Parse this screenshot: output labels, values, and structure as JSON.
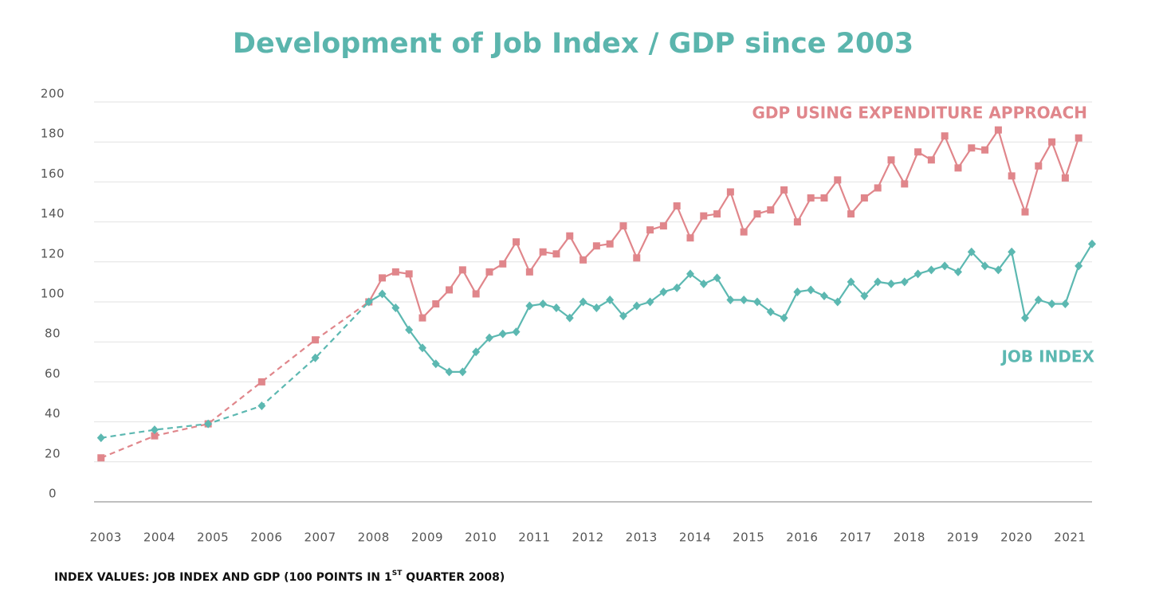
{
  "chart_data": {
    "type": "line",
    "title": "Development of Job Index / GDP since 2003",
    "xlim": [
      2002.87,
      2021.5
    ],
    "xticks": [
      2003,
      2004,
      2005,
      2006,
      2007,
      2008,
      2009,
      2010,
      2011,
      2012,
      2013,
      2014,
      2015,
      2016,
      2017,
      2018,
      2019,
      2020,
      2021
    ],
    "ylim": [
      0,
      200
    ],
    "yticks": [
      0,
      20,
      40,
      60,
      80,
      100,
      120,
      140,
      160,
      180,
      200
    ],
    "grid": true,
    "dashed_before": 2008,
    "series": [
      {
        "name": "GDP USING EXPENDITURE APPROACH",
        "color": "#e0868b",
        "marker": "square",
        "x": [
          2003,
          2004,
          2005,
          2006,
          2007,
          2008,
          2008.25,
          2008.5,
          2008.75,
          2009,
          2009.25,
          2009.5,
          2009.75,
          2010,
          2010.25,
          2010.5,
          2010.75,
          2011,
          2011.25,
          2011.5,
          2011.75,
          2012,
          2012.25,
          2012.5,
          2012.75,
          2013,
          2013.25,
          2013.5,
          2013.75,
          2014,
          2014.25,
          2014.5,
          2014.75,
          2015,
          2015.25,
          2015.5,
          2015.75,
          2016,
          2016.25,
          2016.5,
          2016.75,
          2017,
          2017.25,
          2017.5,
          2017.75,
          2018,
          2018.25,
          2018.5,
          2018.75,
          2019,
          2019.25,
          2019.5,
          2019.75,
          2020,
          2020.25,
          2020.5,
          2020.75,
          2021,
          2021.25
        ],
        "values": [
          22,
          33,
          39,
          60,
          81,
          100,
          112,
          115,
          114,
          92,
          99,
          106,
          116,
          104,
          115,
          119,
          130,
          115,
          125,
          124,
          133,
          121,
          128,
          129,
          138,
          122,
          136,
          138,
          148,
          132,
          143,
          144,
          155,
          135,
          144,
          146,
          156,
          140,
          152,
          152,
          161,
          144,
          152,
          157,
          171,
          159,
          175,
          171,
          183,
          167,
          177,
          176,
          186,
          163,
          145,
          168,
          180,
          162,
          182
        ]
      },
      {
        "name": "JOB INDEX",
        "color": "#5cb8b1",
        "marker": "diamond",
        "x": [
          2003,
          2004,
          2005,
          2006,
          2007,
          2008,
          2008.25,
          2008.5,
          2008.75,
          2009,
          2009.25,
          2009.5,
          2009.75,
          2010,
          2010.25,
          2010.5,
          2010.75,
          2011,
          2011.25,
          2011.5,
          2011.75,
          2012,
          2012.25,
          2012.5,
          2012.75,
          2013,
          2013.25,
          2013.5,
          2013.75,
          2014,
          2014.25,
          2014.5,
          2014.75,
          2015,
          2015.25,
          2015.5,
          2015.75,
          2016,
          2016.25,
          2016.5,
          2016.75,
          2017,
          2017.25,
          2017.5,
          2017.75,
          2018,
          2018.25,
          2018.5,
          2018.75,
          2019,
          2019.25,
          2019.5,
          2019.75,
          2020,
          2020.25,
          2020.5,
          2020.75,
          2021,
          2021.25,
          2021.5
        ],
        "values": [
          32,
          36,
          39,
          48,
          72,
          100,
          104,
          97,
          86,
          77,
          69,
          65,
          65,
          75,
          82,
          84,
          85,
          98,
          99,
          97,
          92,
          100,
          97,
          101,
          93,
          98,
          100,
          105,
          107,
          114,
          109,
          112,
          101,
          101,
          100,
          95,
          92,
          105,
          106,
          103,
          100,
          110,
          103,
          110,
          109,
          110,
          114,
          116,
          118,
          115,
          125,
          118,
          116,
          125,
          92,
          101,
          99,
          99,
          118,
          129
        ]
      }
    ],
    "note": {
      "text": "INDEX VALUES: JOB INDEX AND GDP (100 POINTS IN 1",
      "superscript": "ST",
      "text_after": " QUARTER 2008)"
    }
  }
}
